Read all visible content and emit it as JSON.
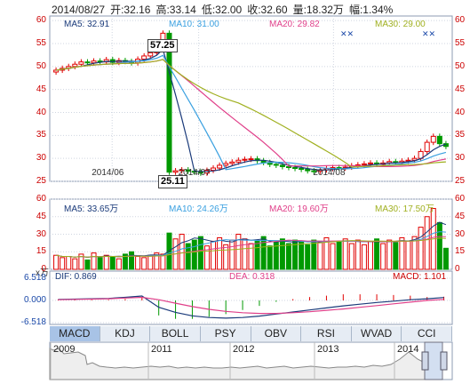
{
  "header": {
    "date": "2014/08/27",
    "open": "开:32.16",
    "high": "高:33.14",
    "low": "低:32.00",
    "close": "收:32.60",
    "volume": "量:18.32万",
    "change": "幅:1.34%"
  },
  "price_legend": {
    "ma5": "MA5: 32.91",
    "ma10": "MA10: 31.00",
    "ma20": "MA20: 29.82",
    "ma30": "MA30: 29.00"
  },
  "volume_legend": {
    "ma5": "MA5: 33.65万",
    "ma10": "MA10: 24.26万",
    "ma20": "MA20: 19.60万",
    "ma30": "MA30: 17.50万"
  },
  "volume_unit": "x万",
  "macd_legend": {
    "dif": "DIF: 0.869",
    "dea": "DEA: 0.318",
    "macd": "MACD: 1.101"
  },
  "annotations": {
    "high": "57.25",
    "low": "25.11"
  },
  "tabs": [
    "MACD",
    "KDJ",
    "BOLL",
    "PSY",
    "OBV",
    "RSI",
    "WVAD",
    "CCI"
  ],
  "active_tab": "MACD",
  "overview_years": [
    "2009",
    "2011",
    "2012",
    "2013",
    "2014"
  ],
  "colors": {
    "up": "#e00000",
    "down": "#009900",
    "ma5": "#1a3a7a",
    "ma10": "#3aa0e0",
    "ma20": "#e0408a",
    "ma30": "#a0b020",
    "grid": "#cfd5e0"
  },
  "chart_data": [
    {
      "type": "candlestick",
      "x_ticks": [
        "2014/06",
        "2014/07",
        "2014/08"
      ],
      "y_ticks": [
        60,
        55,
        50,
        45,
        40,
        35,
        30,
        25
      ],
      "ylim": [
        25,
        61
      ],
      "annotations": [
        {
          "label": "57.25",
          "kind": "high"
        },
        {
          "label": "25.11",
          "kind": "low"
        }
      ],
      "series_close": [
        49.2,
        49.6,
        50.0,
        50.5,
        51.0,
        50.8,
        51.2,
        51.0,
        51.5,
        50.9,
        51.3,
        51.1,
        50.8,
        51.6,
        52.3,
        53.0,
        54.5,
        57.25,
        27.0,
        27.3,
        27.5,
        27.2,
        27.0,
        26.8,
        27.4,
        27.9,
        28.5,
        28.9,
        29.2,
        29.6,
        29.8,
        29.9,
        29.5,
        29.1,
        28.7,
        28.5,
        28.2,
        28.0,
        27.8,
        27.6,
        27.3,
        27.2,
        27.5,
        27.8,
        28.0,
        27.9,
        28.1,
        28.4,
        28.6,
        28.8,
        29.0,
        28.7,
        29.0,
        29.3,
        29.1,
        29.4,
        29.6,
        30.0,
        31.5,
        33.5,
        34.8,
        33.2,
        32.6
      ]
    },
    {
      "type": "bar",
      "y_ticks": [
        60,
        45,
        30,
        15,
        0
      ],
      "ylim": [
        0,
        60
      ],
      "values": [
        12,
        10,
        11,
        9,
        13,
        8,
        14,
        10,
        12,
        11,
        9,
        13,
        15,
        11,
        10,
        12,
        14,
        13,
        31,
        26,
        30,
        22,
        25,
        28,
        20,
        24,
        27,
        21,
        25,
        30,
        26,
        22,
        24,
        28,
        20,
        23,
        26,
        22,
        25,
        24,
        21,
        25,
        23,
        27,
        22,
        24,
        26,
        22,
        25,
        21,
        24,
        26,
        22,
        25,
        23,
        27,
        24,
        28,
        36,
        45,
        52,
        40,
        18
      ]
    },
    {
      "type": "bar",
      "y_ticks": [
        6.518,
        0.0,
        -6.518
      ],
      "ylim": [
        -6.518,
        6.518
      ],
      "series": [
        {
          "name": "DIF",
          "values": [
            0.3,
            0.4,
            0.5,
            0.6,
            0.9,
            1.3,
            -2.0,
            -3.5,
            -4.5,
            -5.0,
            -5.2,
            -5.0,
            -4.6,
            -4.0,
            -3.4,
            -2.8,
            -2.2,
            -1.6,
            -1.1,
            -0.6,
            -0.2,
            0.2,
            0.5,
            0.869
          ]
        },
        {
          "name": "DEA",
          "values": [
            0.2,
            0.3,
            0.4,
            0.5,
            0.7,
            0.9,
            0.2,
            -0.8,
            -1.8,
            -2.6,
            -3.2,
            -3.6,
            -3.8,
            -3.8,
            -3.6,
            -3.3,
            -2.9,
            -2.5,
            -2.0,
            -1.5,
            -1.0,
            -0.5,
            0.0,
            0.318
          ]
        },
        {
          "name": "MACD",
          "values": [
            0.2,
            0.2,
            0.2,
            0.2,
            0.4,
            0.8,
            -4.4,
            -5.4,
            -5.4,
            -4.8,
            -4.0,
            -2.8,
            -1.6,
            -0.4,
            0.4,
            1.0,
            1.4,
            1.8,
            1.8,
            1.8,
            1.6,
            1.4,
            1.0,
            1.101
          ]
        }
      ]
    }
  ]
}
